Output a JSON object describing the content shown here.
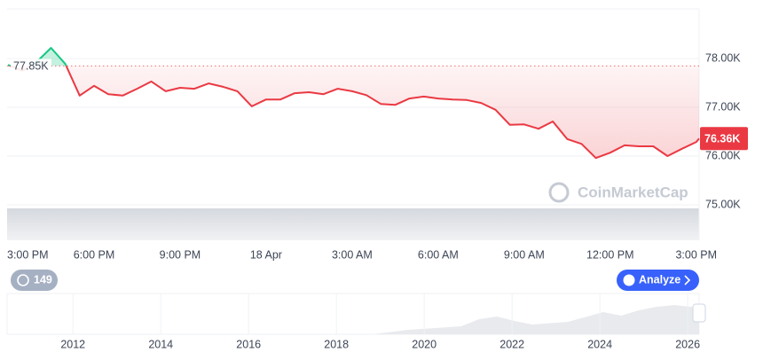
{
  "chart_data": {
    "type": "line",
    "x": [
      0,
      0.5,
      1,
      1.5,
      2,
      2.5,
      3,
      3.5,
      4,
      4.5,
      5,
      5.5,
      6,
      6.5,
      7,
      7.5,
      8,
      8.5,
      9,
      9.5,
      10,
      10.5,
      11,
      11.5,
      12,
      12.5,
      13,
      13.5,
      14,
      14.5,
      15,
      15.5,
      16,
      16.5,
      17,
      17.5,
      18,
      18.5,
      19,
      19.5,
      20,
      20.5,
      21,
      21.5,
      22,
      22.5,
      23,
      23.5,
      24,
      24.1
    ],
    "series": [
      {
        "color": "#ea3943",
        "values": [
          77.87,
          77.75,
          77.93,
          78.22,
          77.89,
          77.24,
          77.44,
          77.27,
          77.24,
          77.38,
          77.53,
          77.33,
          77.4,
          77.38,
          77.49,
          77.42,
          77.33,
          77.02,
          77.16,
          77.16,
          77.29,
          77.31,
          77.27,
          77.38,
          77.33,
          77.25,
          77.07,
          77.05,
          77.18,
          77.22,
          77.18,
          77.16,
          77.15,
          77.09,
          76.95,
          76.64,
          76.65,
          76.56,
          76.71,
          76.35,
          76.25,
          75.96,
          76.07,
          76.22,
          76.2,
          76.2,
          76.0,
          76.15,
          76.29,
          76.36
        ]
      }
    ],
    "up_color": "#16c784",
    "xlim": [
      0,
      24.1
    ],
    "xticks": [
      {
        "value": 0,
        "label": "3:00 PM"
      },
      {
        "value": 3,
        "label": "6:00 PM"
      },
      {
        "value": 6,
        "label": "9:00 PM"
      },
      {
        "value": 9,
        "label": "18 Apr"
      },
      {
        "value": 12,
        "label": "3:00 AM"
      },
      {
        "value": 15,
        "label": "6:00 AM"
      },
      {
        "value": 18,
        "label": "9:00 AM"
      },
      {
        "value": 21,
        "label": "12:00 PM"
      },
      {
        "value": 24,
        "label": "3:00 PM"
      }
    ],
    "ylim": [
      74.29,
      79.02
    ],
    "yticks": [
      {
        "value": 75,
        "label": "75.00K"
      },
      {
        "value": 76,
        "label": "76.00K"
      },
      {
        "value": 77,
        "label": "77.00K"
      },
      {
        "value": 78,
        "label": "78.00K"
      }
    ],
    "grid": true,
    "baseline": {
      "value": 77.85,
      "label": "77.85K"
    },
    "last_price": {
      "value": 76.36,
      "label": "76.36K"
    }
  },
  "navigator": {
    "xlim": [
      2010.5,
      2026.26
    ],
    "xticks": [
      2012,
      2014,
      2016,
      2018,
      2020,
      2022,
      2024,
      2026
    ]
  },
  "history_badge": "149",
  "analyze_button": "Analyze",
  "watermark": "CoinMarketCap"
}
